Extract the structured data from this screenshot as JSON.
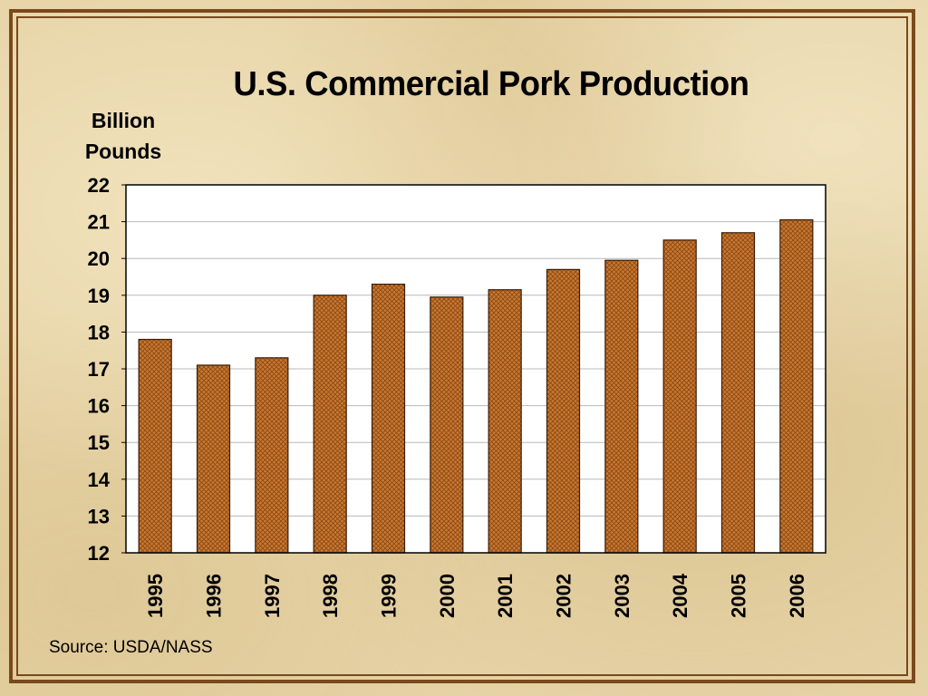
{
  "chart_data": {
    "type": "bar",
    "title": "U.S. Commercial Pork Production",
    "ylabel_line1": "Billion",
    "ylabel_line2": "Pounds",
    "xlabel": "",
    "categories": [
      "1995",
      "1996",
      "1997",
      "1998",
      "1999",
      "2000",
      "2001",
      "2002",
      "2003",
      "2004",
      "2005",
      "2006"
    ],
    "values": [
      17.8,
      17.1,
      17.3,
      19.0,
      19.3,
      18.95,
      19.15,
      19.7,
      19.95,
      20.5,
      20.7,
      21.05
    ],
    "ylim": [
      12,
      22
    ],
    "yticks": [
      12,
      13,
      14,
      15,
      16,
      17,
      18,
      19,
      20,
      21,
      22
    ],
    "grid": true,
    "legend": "none",
    "bar_color": "#c8782e",
    "bar_pattern_color": "#7a3b10",
    "plot_background": "#ffffff",
    "source": "Source: USDA/NASS"
  },
  "colors": {
    "frame": "#7a4a1c",
    "background": "#e6d3a6"
  }
}
